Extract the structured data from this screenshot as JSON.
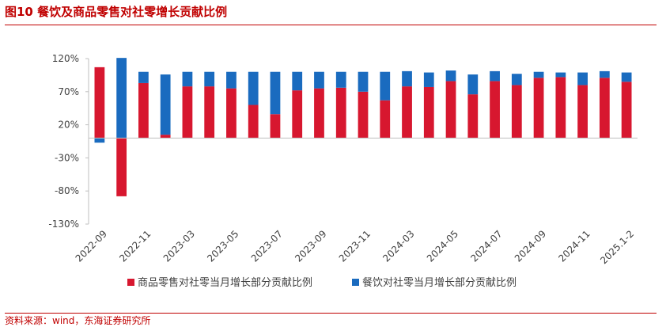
{
  "header": {
    "title": "图10  餐饮及商品零售对社零增长贡献比例"
  },
  "footer": {
    "source": "资料来源：wind，东海证券研究所"
  },
  "colors": {
    "red": "#d7172f",
    "blue": "#1a6bbf",
    "accent": "#c00000",
    "axis": "#bfbfbf"
  },
  "chart_data": {
    "type": "bar",
    "stacked": true,
    "x_tick_labels": [
      "2022-09",
      "2022-11",
      "2023-03",
      "2023-05",
      "2023-07",
      "2023-09",
      "2023-11",
      "2024-03",
      "2024-05",
      "2024-07",
      "2024-09",
      "2024-11",
      "2025.1-2"
    ],
    "y_tick_labels": [
      "120%",
      "70%",
      "20%",
      "-30%",
      "-80%",
      "-130%"
    ],
    "ylim": [
      -130,
      120
    ],
    "grid": false,
    "legend_position": "bottom",
    "series": [
      {
        "name": "商品零售对社零当月增长部分贡献比例",
        "values": [
          107,
          -88,
          83,
          5,
          78,
          78,
          75,
          50,
          36,
          72,
          75,
          76,
          70,
          57,
          78,
          77,
          86,
          66,
          86,
          80,
          91,
          92,
          80,
          91,
          85
        ]
      },
      {
        "name": "餐饮对社零当月增长部分贡献比例",
        "values": [
          -7,
          121,
          17,
          91,
          22,
          22,
          25,
          50,
          64,
          28,
          25,
          24,
          30,
          43,
          23,
          22,
          16,
          30,
          15,
          17,
          9,
          7,
          19,
          10,
          14
        ]
      }
    ]
  }
}
